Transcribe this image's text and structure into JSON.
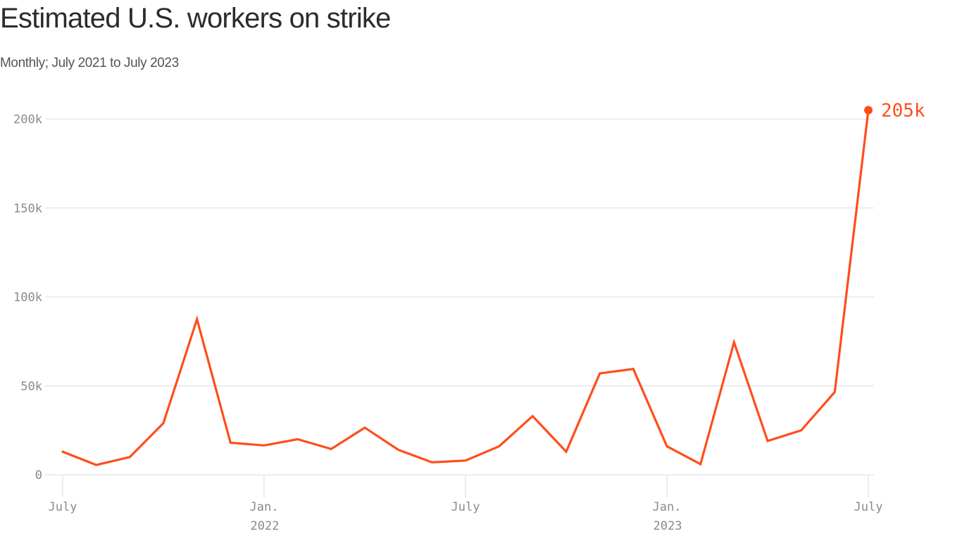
{
  "header": {
    "title": "Estimated U.S. workers on strike",
    "subtitle": "Monthly; July 2021 to July 2023"
  },
  "colors": {
    "line": "#ff4d1a",
    "grid": "#e2e2e2",
    "tick_text": "#8a8a8a",
    "title": "#2b2b2b"
  },
  "chart_data": {
    "type": "line",
    "title": "Estimated U.S. workers on strike",
    "subtitle": "Monthly; July 2021 to July 2023",
    "xlabel": "",
    "ylabel": "",
    "ylim": [
      0,
      200000
    ],
    "grid": true,
    "legend": "none",
    "y_ticks": [
      {
        "value": 0,
        "label": "0"
      },
      {
        "value": 50000,
        "label": "50k"
      },
      {
        "value": 100000,
        "label": "100k"
      },
      {
        "value": 150000,
        "label": "150k"
      },
      {
        "value": 200000,
        "label": "200k"
      }
    ],
    "x_ticks": [
      {
        "index": 0,
        "label": "July",
        "sublabel": ""
      },
      {
        "index": 6,
        "label": "Jan.",
        "sublabel": "2022"
      },
      {
        "index": 12,
        "label": "July",
        "sublabel": ""
      },
      {
        "index": 18,
        "label": "Jan.",
        "sublabel": "2023"
      },
      {
        "index": 24,
        "label": "July",
        "sublabel": ""
      }
    ],
    "x": [
      "2021-07",
      "2021-08",
      "2021-09",
      "2021-10",
      "2021-11",
      "2021-12",
      "2022-01",
      "2022-02",
      "2022-03",
      "2022-04",
      "2022-05",
      "2022-06",
      "2022-07",
      "2022-08",
      "2022-09",
      "2022-10",
      "2022-11",
      "2022-12",
      "2023-01",
      "2023-02",
      "2023-03",
      "2023-04",
      "2023-05",
      "2023-06",
      "2023-07"
    ],
    "series": [
      {
        "name": "Workers on strike",
        "values": [
          13000,
          5500,
          10000,
          29000,
          87500,
          18000,
          16500,
          20000,
          14500,
          26500,
          14000,
          7000,
          8000,
          16000,
          33000,
          13000,
          57000,
          59500,
          16000,
          6000,
          74500,
          19000,
          25000,
          46500,
          205000
        ]
      }
    ],
    "annotations": [
      {
        "index": 24,
        "label": "205k"
      }
    ]
  }
}
